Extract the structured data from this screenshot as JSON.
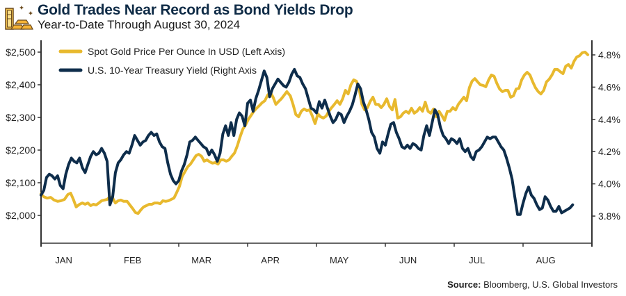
{
  "header": {
    "title": "Gold Trades Near Record as Bond Yields Drop",
    "subtitle": "Year-to-Date Through August 30, 2024",
    "icon": "gold-bars-icon"
  },
  "source": {
    "label": "Source:",
    "text": " Bloomberg, U.S. Global Investors"
  },
  "colors": {
    "gold": "#e8b92e",
    "yield": "#0e2d4b",
    "axis": "#333333"
  },
  "chart_data": {
    "type": "line",
    "title": "Gold Trades Near Record as Bond Yields Drop",
    "subtitle": "Year-to-Date Through August 30, 2024",
    "xlabel": "",
    "ylabel_left": "Spot Gold Price Per Ounce (USD)",
    "ylabel_right": "U.S. 10-Year Treasury Yield (%)",
    "x_categories": [
      "JAN",
      "FEB",
      "MAR",
      "APR",
      "MAY",
      "JUN",
      "JUL",
      "AUG"
    ],
    "x_range_months": [
      0,
      8
    ],
    "ylim_left": [
      1900,
      2540
    ],
    "yticks_left": [
      2000,
      2100,
      2200,
      2300,
      2400,
      2500
    ],
    "ytick_labels_left": [
      "$2,000",
      "$2,100",
      "$2,200",
      "$2,300",
      "$2,400",
      "$2,500"
    ],
    "ylim_right": [
      3.63,
      4.84
    ],
    "yticks_right": [
      3.8,
      4.0,
      4.2,
      4.4,
      4.6,
      4.8
    ],
    "ytick_labels_right": [
      "3.8%",
      "4.0%",
      "4.2%",
      "4.4%",
      "4.6%",
      "4.8%"
    ],
    "legend": {
      "position": "top-left",
      "entries": [
        {
          "name": "Spot Gold Price Per Ounce In USD (Left Axis)",
          "series": "gold"
        },
        {
          "name": "U.S. 10-Year Treasury Yield (Right Axis",
          "series": "yield"
        }
      ]
    },
    "grid": false,
    "series": [
      {
        "name": "Spot Gold Price Per Ounce In USD (Left Axis)",
        "key": "gold",
        "axis": "left",
        "x_months": [
          0,
          0.04,
          0.09,
          0.14,
          0.19,
          0.24,
          0.29,
          0.34,
          0.39,
          0.43,
          0.47,
          0.51,
          0.56,
          0.6,
          0.64,
          0.68,
          0.72,
          0.76,
          0.8,
          0.84,
          0.88,
          0.92,
          0.96,
          1.0,
          1.04,
          1.08,
          1.12,
          1.16,
          1.2,
          1.25,
          1.29,
          1.33,
          1.37,
          1.41,
          1.45,
          1.49,
          1.53,
          1.57,
          1.61,
          1.65,
          1.69,
          1.73,
          1.77,
          1.81,
          1.85,
          1.89,
          1.93,
          1.97,
          2.01,
          2.05,
          2.09,
          2.13,
          2.17,
          2.21,
          2.25,
          2.29,
          2.33,
          2.37,
          2.41,
          2.45,
          2.49,
          2.53,
          2.57,
          2.61,
          2.65,
          2.69,
          2.73,
          2.77,
          2.81,
          2.85,
          2.89,
          2.93,
          2.97,
          3.01,
          3.05,
          3.09,
          3.13,
          3.17,
          3.21,
          3.25,
          3.29,
          3.33,
          3.37,
          3.41,
          3.45,
          3.49,
          3.53,
          3.57,
          3.62,
          3.66,
          3.7,
          3.74,
          3.78,
          3.82,
          3.86,
          3.9,
          3.94,
          3.98,
          4.02,
          4.06,
          4.1,
          4.14,
          4.18,
          4.22,
          4.26,
          4.3,
          4.34,
          4.38,
          4.42,
          4.46,
          4.5,
          4.54,
          4.58,
          4.62,
          4.66,
          4.7,
          4.74,
          4.78,
          4.82,
          4.86,
          4.9,
          4.94,
          4.98,
          5.02,
          5.06,
          5.1,
          5.14,
          5.18,
          5.22,
          5.26,
          5.3,
          5.34,
          5.38,
          5.42,
          5.46,
          5.5,
          5.54,
          5.58,
          5.62,
          5.66,
          5.7,
          5.74,
          5.78,
          5.82,
          5.86,
          5.9,
          5.94,
          5.98,
          6.02,
          6.06,
          6.1,
          6.14,
          6.18,
          6.22,
          6.26,
          6.3,
          6.34,
          6.38,
          6.42,
          6.46,
          6.5,
          6.54,
          6.58,
          6.62,
          6.66,
          6.7,
          6.74,
          6.78,
          6.82,
          6.86,
          6.9,
          6.94,
          6.98,
          7.02,
          7.06,
          7.1,
          7.14,
          7.18,
          7.22,
          7.26,
          7.3,
          7.34,
          7.38,
          7.42,
          7.46,
          7.5,
          7.54,
          7.58,
          7.62,
          7.66,
          7.7,
          7.74,
          7.78,
          7.82,
          7.86,
          7.9,
          7.94,
          7.98
        ],
        "values": [
          2066,
          2057,
          2053,
          2055,
          2047,
          2043,
          2045,
          2049,
          2064,
          2068,
          2049,
          2026,
          2034,
          2038,
          2034,
          2038,
          2030,
          2034,
          2032,
          2038,
          2045,
          2047,
          2049,
          2057,
          2053,
          2038,
          2045,
          2047,
          2043,
          2043,
          2032,
          2021,
          2009,
          2006,
          2017,
          2026,
          2030,
          2034,
          2034,
          2038,
          2038,
          2036,
          2045,
          2043,
          2045,
          2049,
          2053,
          2070,
          2089,
          2119,
          2134,
          2149,
          2157,
          2170,
          2183,
          2187,
          2181,
          2166,
          2170,
          2164,
          2160,
          2162,
          2157,
          2170,
          2170,
          2166,
          2170,
          2181,
          2191,
          2213,
          2240,
          2264,
          2277,
          2294,
          2306,
          2319,
          2328,
          2336,
          2345,
          2351,
          2368,
          2377,
          2362,
          2340,
          2349,
          2357,
          2368,
          2379,
          2366,
          2340,
          2309,
          2302,
          2319,
          2326,
          2321,
          2323,
          2304,
          2281,
          2311,
          2302,
          2298,
          2304,
          2319,
          2330,
          2340,
          2351,
          2340,
          2357,
          2383,
          2372,
          2400,
          2415,
          2411,
          2387,
          2340,
          2323,
          2330,
          2349,
          2362,
          2340,
          2340,
          2330,
          2340,
          2357,
          2334,
          2323,
          2355,
          2298,
          2302,
          2313,
          2319,
          2313,
          2328,
          2313,
          2319,
          2330,
          2319,
          2347,
          2319,
          2313,
          2326,
          2302,
          2319,
          2306,
          2291,
          2319,
          2319,
          2330,
          2323,
          2340,
          2351,
          2362,
          2351,
          2391,
          2411,
          2419,
          2409,
          2400,
          2398,
          2394,
          2415,
          2430,
          2426,
          2404,
          2387,
          2379,
          2383,
          2383,
          2362,
          2366,
          2387,
          2389,
          2415,
          2430,
          2438,
          2430,
          2409,
          2391,
          2379,
          2372,
          2383,
          2409,
          2417,
          2430,
          2447,
          2447,
          2440,
          2434,
          2457,
          2462,
          2451,
          2472,
          2485,
          2489,
          2498,
          2500,
          2492
        ]
      },
      {
        "name": "U.S. 10-Year Treasury Yield (Right Axis",
        "key": "yield",
        "axis": "right",
        "x_months": [
          0,
          0.04,
          0.08,
          0.12,
          0.16,
          0.2,
          0.24,
          0.28,
          0.32,
          0.36,
          0.4,
          0.44,
          0.48,
          0.52,
          0.56,
          0.6,
          0.64,
          0.68,
          0.72,
          0.76,
          0.8,
          0.84,
          0.88,
          0.92,
          0.96,
          1.0,
          1.04,
          1.08,
          1.12,
          1.16,
          1.2,
          1.24,
          1.28,
          1.32,
          1.36,
          1.4,
          1.44,
          1.48,
          1.52,
          1.56,
          1.6,
          1.64,
          1.68,
          1.72,
          1.76,
          1.8,
          1.84,
          1.88,
          1.92,
          1.96,
          2.0,
          2.04,
          2.08,
          2.12,
          2.16,
          2.2,
          2.24,
          2.28,
          2.32,
          2.36,
          2.4,
          2.44,
          2.48,
          2.52,
          2.56,
          2.6,
          2.64,
          2.68,
          2.72,
          2.76,
          2.8,
          2.84,
          2.88,
          2.92,
          2.96,
          3.0,
          3.04,
          3.08,
          3.12,
          3.16,
          3.2,
          3.24,
          3.28,
          3.32,
          3.36,
          3.4,
          3.44,
          3.48,
          3.52,
          3.56,
          3.6,
          3.64,
          3.68,
          3.72,
          3.76,
          3.8,
          3.84,
          3.88,
          3.92,
          3.96,
          4.0,
          4.04,
          4.08,
          4.12,
          4.16,
          4.2,
          4.24,
          4.28,
          4.32,
          4.36,
          4.4,
          4.44,
          4.48,
          4.52,
          4.56,
          4.6,
          4.64,
          4.68,
          4.72,
          4.76,
          4.8,
          4.84,
          4.88,
          4.92,
          4.96,
          5.0,
          5.04,
          5.08,
          5.12,
          5.16,
          5.2,
          5.24,
          5.28,
          5.32,
          5.36,
          5.4,
          5.44,
          5.48,
          5.52,
          5.56,
          5.6,
          5.64,
          5.68,
          5.72,
          5.76,
          5.8,
          5.84,
          5.88,
          5.92,
          5.96,
          6.0,
          6.04,
          6.08,
          6.12,
          6.16,
          6.2,
          6.24,
          6.28,
          6.32,
          6.36,
          6.4,
          6.44,
          6.48,
          6.52,
          6.56,
          6.6,
          6.64,
          6.68,
          6.72,
          6.76,
          6.8,
          6.84,
          6.88,
          6.92,
          6.96,
          7.0,
          7.04,
          7.08,
          7.12,
          7.16,
          7.2,
          7.24,
          7.28,
          7.32,
          7.36,
          7.4,
          7.44,
          7.48,
          7.52,
          7.56,
          7.6,
          7.64,
          7.68,
          7.72,
          7.76,
          7.8,
          7.84,
          7.88,
          7.92,
          7.96,
          8.0
        ],
        "values": [
          3.93,
          3.96,
          4.04,
          4.06,
          4.05,
          4.03,
          4.05,
          3.99,
          3.97,
          4.06,
          4.12,
          4.16,
          4.14,
          4.13,
          4.16,
          4.1,
          4.07,
          4.12,
          4.17,
          4.2,
          4.18,
          4.19,
          4.22,
          4.19,
          4.14,
          3.87,
          3.92,
          4.07,
          4.13,
          4.15,
          4.18,
          4.2,
          4.19,
          4.24,
          4.3,
          4.27,
          4.24,
          4.26,
          4.27,
          4.3,
          4.32,
          4.3,
          4.31,
          4.26,
          4.23,
          4.22,
          4.13,
          4.06,
          4.02,
          4.0,
          4.02,
          4.08,
          4.12,
          4.18,
          4.26,
          4.27,
          4.29,
          4.27,
          4.25,
          4.23,
          4.22,
          4.18,
          4.21,
          4.18,
          4.14,
          4.19,
          4.31,
          4.36,
          4.3,
          4.38,
          4.3,
          4.4,
          4.44,
          4.42,
          4.36,
          4.5,
          4.52,
          4.45,
          4.53,
          4.58,
          4.64,
          4.7,
          4.66,
          4.54,
          4.59,
          4.62,
          4.65,
          4.63,
          4.61,
          4.6,
          4.63,
          4.68,
          4.71,
          4.67,
          4.66,
          4.62,
          4.59,
          4.53,
          4.47,
          4.46,
          4.44,
          4.51,
          4.47,
          4.52,
          4.47,
          4.42,
          4.38,
          4.4,
          4.44,
          4.43,
          4.38,
          4.42,
          4.45,
          4.49,
          4.55,
          4.62,
          4.59,
          4.51,
          4.46,
          4.4,
          4.32,
          4.29,
          4.22,
          4.19,
          4.26,
          4.24,
          4.31,
          4.37,
          4.38,
          4.32,
          4.28,
          4.23,
          4.22,
          4.24,
          4.22,
          4.25,
          4.24,
          4.22,
          4.21,
          4.3,
          4.36,
          4.3,
          4.38,
          4.46,
          4.43,
          4.35,
          4.3,
          4.28,
          4.25,
          4.28,
          4.27,
          4.25,
          4.28,
          4.22,
          4.2,
          4.22,
          4.17,
          4.15,
          4.2,
          4.21,
          4.23,
          4.26,
          4.29,
          4.28,
          4.29,
          4.29,
          4.26,
          4.23,
          4.21,
          4.16,
          4.1,
          4.03,
          3.92,
          3.81,
          3.81,
          3.88,
          3.94,
          3.98,
          3.93,
          3.91,
          3.87,
          3.84,
          3.85,
          3.92,
          3.9,
          3.86,
          3.83,
          3.83,
          3.86,
          3.82,
          3.83,
          3.84,
          3.85,
          3.87
        ]
      }
    ]
  }
}
